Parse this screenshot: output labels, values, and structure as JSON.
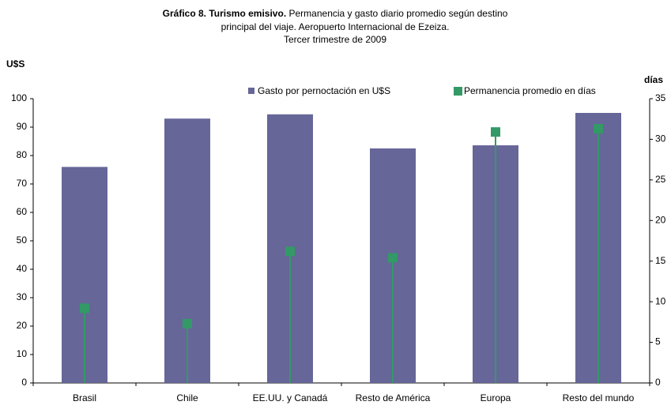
{
  "chart_data": {
    "type": "bar_lollipop",
    "title_bold": "Gráfico 8. Turismo emisivo.",
    "title": [
      "Permanencia y gasto diario promedio según destino",
      "principal del viaje. Aeropuerto Internacional de Ezeiza.",
      "Tercer trimestre de 2009"
    ],
    "y_label": "U$S",
    "y2_label": "días",
    "categories": [
      "Brasil",
      "Chile",
      "EE.UU. y Canadá",
      "Resto de América",
      "Europa",
      "Resto del mundo"
    ],
    "series": [
      {
        "name": "Gasto por pernoctación en U$S",
        "color": "#666699",
        "values": [
          76,
          93,
          94.5,
          82.5,
          83.6,
          95
        ]
      },
      {
        "name": "Permanencia promedio en días",
        "color": "#339966",
        "axis": "y2",
        "values": [
          9.2,
          7.3,
          16.2,
          15.4,
          30.9,
          31.3
        ]
      }
    ],
    "ylim": [
      0,
      100
    ],
    "yticks": [
      0,
      10,
      20,
      30,
      40,
      50,
      60,
      70,
      80,
      90,
      100
    ],
    "y2lim": [
      0,
      35
    ],
    "y2ticks": [
      0,
      5,
      10,
      15,
      20,
      25,
      30,
      35
    ]
  }
}
